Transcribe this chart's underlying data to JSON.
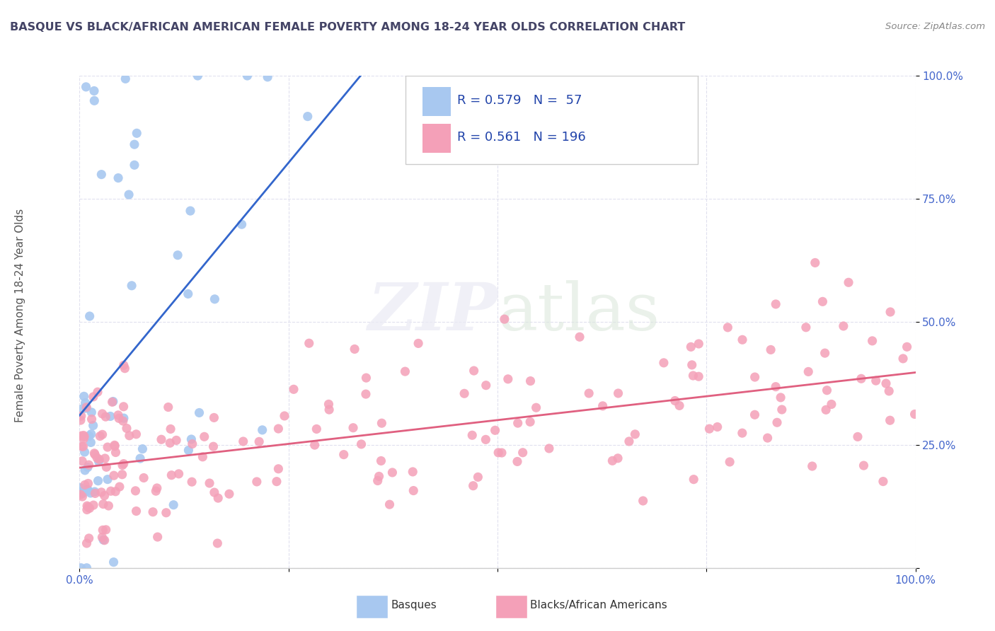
{
  "title": "BASQUE VS BLACK/AFRICAN AMERICAN FEMALE POVERTY AMONG 18-24 YEAR OLDS CORRELATION CHART",
  "source": "Source: ZipAtlas.com",
  "ylabel": "Female Poverty Among 18-24 Year Olds",
  "legend1_label": "Basques",
  "legend2_label": "Blacks/African Americans",
  "R_basque": 0.579,
  "N_basque": 57,
  "R_black": 0.561,
  "N_black": 196,
  "basque_color": "#a8c8f0",
  "black_color": "#f4a0b8",
  "basque_line_color": "#3366cc",
  "black_line_color": "#e06080",
  "watermark_zip": "ZIP",
  "watermark_atlas": "atlas",
  "title_color": "#444466",
  "source_color": "#888888",
  "background_color": "#ffffff",
  "grid_color": "#e0e0ee",
  "tick_label_color": "#4466cc",
  "ylabel_color": "#555555"
}
